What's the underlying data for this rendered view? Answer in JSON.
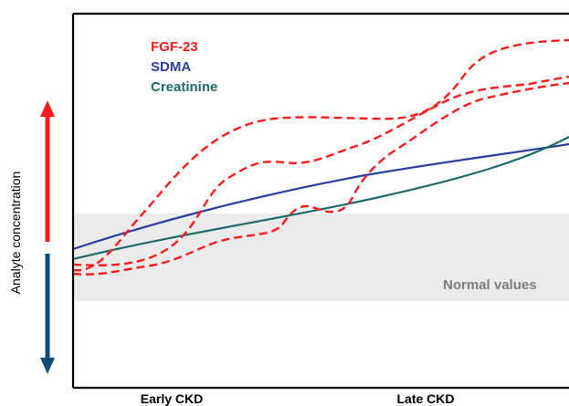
{
  "chart_data": {
    "type": "line",
    "title": "",
    "ylabel": "Analyte concentration",
    "xlabel": "",
    "categories": [
      "Early CKD",
      "Late CKD"
    ],
    "band_label": "Normal values",
    "legend_position": "top-left",
    "series": [
      {
        "name": "FGF-23",
        "color": "#ff1a1a"
      },
      {
        "name": "SDMA",
        "color": "#2b3f9f"
      },
      {
        "name": "Creatinine",
        "color": "#1f6b6b"
      }
    ],
    "arrow_colors": {
      "up": "#ff1a1a",
      "down": "#0f4c7a"
    }
  }
}
